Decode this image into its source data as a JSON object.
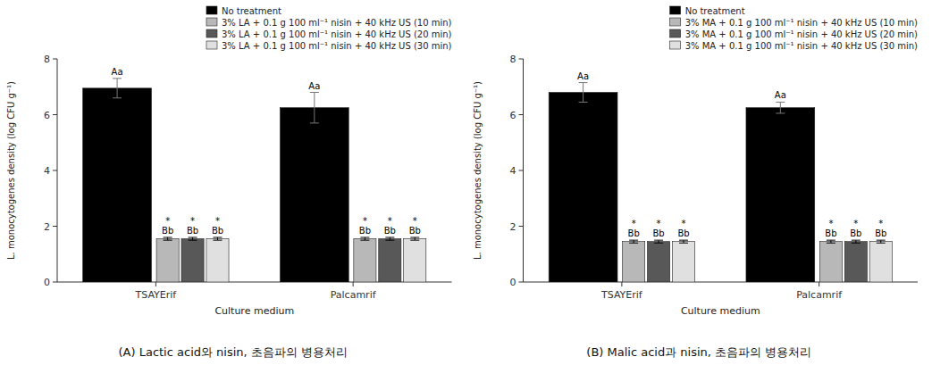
{
  "chart_data": [
    {
      "type": "bar",
      "title": "(A) Lactic acid와 nisin, 초음파의 병용처리",
      "x_label": "Culture medium",
      "y_label": "L. monocytogenes density (log CFU g⁻¹)",
      "categories": [
        "TSAYErif",
        "Palcamrif"
      ],
      "series": [
        {
          "name": "No treatment",
          "color": "#000000",
          "values": [
            6.95,
            6.25
          ],
          "errors": [
            0.35,
            0.55
          ],
          "annotations": [
            [
              "Aa"
            ],
            [
              "Aa"
            ]
          ]
        },
        {
          "name": "3% LA + 0.1 g 100 ml⁻¹ nisin + 40 kHz US (10 min)",
          "color": "#b8b8b8",
          "values": [
            1.55,
            1.55
          ],
          "errors": [
            0.05,
            0.05
          ],
          "annotations": [
            [
              "*",
              "Bb"
            ],
            [
              "*",
              "Bb"
            ]
          ]
        },
        {
          "name": "3% LA + 0.1 g 100 ml⁻¹ nisin + 40 kHz US (20 min)",
          "color": "#585858",
          "values": [
            1.55,
            1.55
          ],
          "errors": [
            0.05,
            0.05
          ],
          "annotations": [
            [
              "*",
              "Bb"
            ],
            [
              "*",
              "Bb"
            ]
          ]
        },
        {
          "name": "3% LA + 0.1 g 100 ml⁻¹ nisin + 40 kHz US (30 min)",
          "color": "#e0e0e0",
          "values": [
            1.55,
            1.55
          ],
          "errors": [
            0.05,
            0.05
          ],
          "annotations": [
            [
              "*",
              "Bb"
            ],
            [
              "*",
              "Bb"
            ]
          ]
        }
      ],
      "ylim": [
        0,
        8
      ],
      "yticks": [
        0,
        2,
        4,
        6,
        8
      ],
      "grid": false,
      "legend": "upper right"
    },
    {
      "type": "bar",
      "title": "(B) Malic acid과 nisin, 초음파의 병용처리",
      "x_label": "Culture medium",
      "y_label": "L. monocytogenes density (log CFU g⁻¹)",
      "categories": [
        "TSAYErif",
        "Palcamrif"
      ],
      "series": [
        {
          "name": "No treatment",
          "color": "#000000",
          "values": [
            6.8,
            6.25
          ],
          "errors": [
            0.35,
            0.2
          ],
          "annotations": [
            [
              "Aa"
            ],
            [
              "Aa"
            ]
          ]
        },
        {
          "name": "3% MA + 0.1 g 100 ml⁻¹ nisin + 40 kHz US (10 min)",
          "color": "#b8b8b8",
          "values": [
            1.45,
            1.45
          ],
          "errors": [
            0.05,
            0.05
          ],
          "annotations": [
            [
              "*",
              "Bb"
            ],
            [
              "*",
              "Bb"
            ]
          ]
        },
        {
          "name": "3% MA + 0.1 g 100 ml⁻¹ nisin + 40 kHz US (20 min)",
          "color": "#585858",
          "values": [
            1.45,
            1.45
          ],
          "errors": [
            0.05,
            0.05
          ],
          "annotations": [
            [
              "*",
              "Bb"
            ],
            [
              "*",
              "Bb"
            ]
          ]
        },
        {
          "name": "3% MA + 0.1 g 100 ml⁻¹ nisin + 40 kHz US (30 min)",
          "color": "#e0e0e0",
          "values": [
            1.45,
            1.45
          ],
          "errors": [
            0.05,
            0.05
          ],
          "annotations": [
            [
              "*",
              "Bb"
            ],
            [
              "*",
              "Bb"
            ]
          ]
        }
      ],
      "ylim": [
        0,
        8
      ],
      "yticks": [
        0,
        2,
        4,
        6,
        8
      ],
      "grid": false,
      "legend": "upper right"
    }
  ]
}
